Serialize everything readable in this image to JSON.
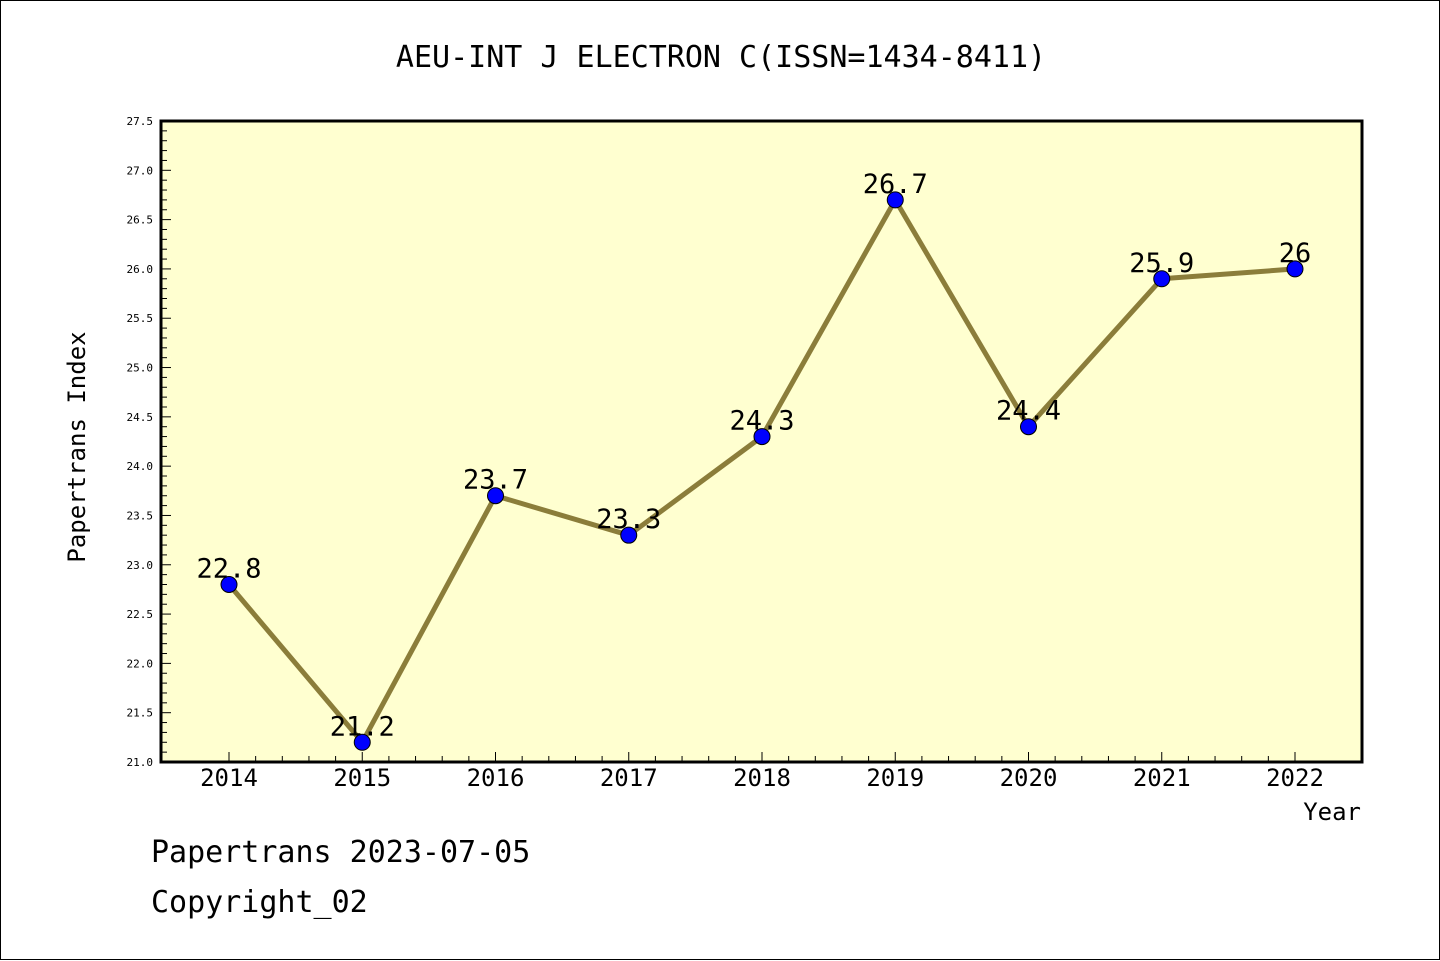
{
  "chart_data": {
    "type": "line",
    "title": "AEU-INT J ELECTRON C(ISSN=1434-8411)",
    "xlabel": "Year",
    "ylabel": "Papertrans Index",
    "categories": [
      "2014",
      "2015",
      "2016",
      "2017",
      "2018",
      "2019",
      "2020",
      "2021",
      "2022"
    ],
    "series": [
      {
        "values": [
          22.8,
          21.2,
          23.7,
          23.3,
          24.3,
          26.7,
          24.4,
          25.9,
          26.0
        ]
      }
    ],
    "data_labels": [
      "22.8",
      "21.2",
      "23.7",
      "23.3",
      "24.3",
      "26.7",
      "24.4",
      "25.9",
      "26"
    ],
    "ylim": [
      21.0,
      27.5
    ],
    "yticks": [
      "21.0",
      "21.5",
      "22.0",
      "22.5",
      "23.0",
      "23.5",
      "24.0",
      "24.5",
      "25.0",
      "25.5",
      "26.0",
      "26.5",
      "27.0",
      "27.5"
    ],
    "grid": false,
    "colors": {
      "plot_background": "#ffffd0",
      "line": "#8b7d3a",
      "marker": "#0000ff"
    }
  },
  "footer": {
    "line1": "Papertrans 2023-07-05",
    "line2": "Copyright_02"
  }
}
